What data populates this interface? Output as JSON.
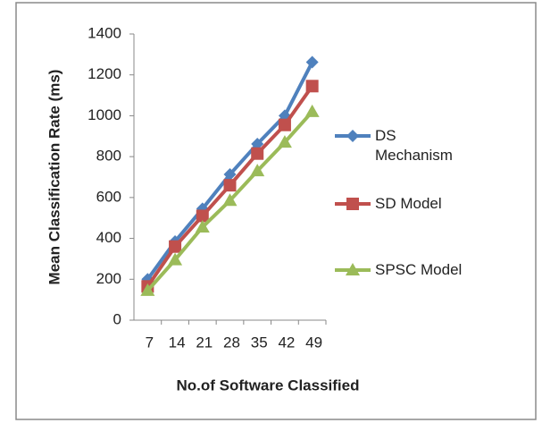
{
  "chart_data": {
    "type": "line",
    "x_label": "No.of Software Classified",
    "y_label": "Mean Classification Rate (ms)",
    "categories": [
      "7",
      "14",
      "21",
      "28",
      "35",
      "42",
      "49"
    ],
    "series": [
      {
        "name": "DS Mechanism",
        "color": "#4f81bd",
        "marker": "diamond",
        "values": [
          200,
          385,
          545,
          713,
          862,
          1000,
          1262
        ]
      },
      {
        "name": "SD Model",
        "color": "#c0504d",
        "marker": "square",
        "values": [
          165,
          360,
          510,
          660,
          815,
          955,
          1145
        ]
      },
      {
        "name": "SPSC Model",
        "color": "#9bbb59",
        "marker": "triangle",
        "values": [
          145,
          295,
          455,
          585,
          730,
          870,
          1020
        ]
      }
    ],
    "ylim": [
      0,
      1400
    ],
    "yticks": [
      0,
      200,
      400,
      600,
      800,
      1000,
      1200,
      1400
    ],
    "grid": false,
    "legend": "right"
  }
}
